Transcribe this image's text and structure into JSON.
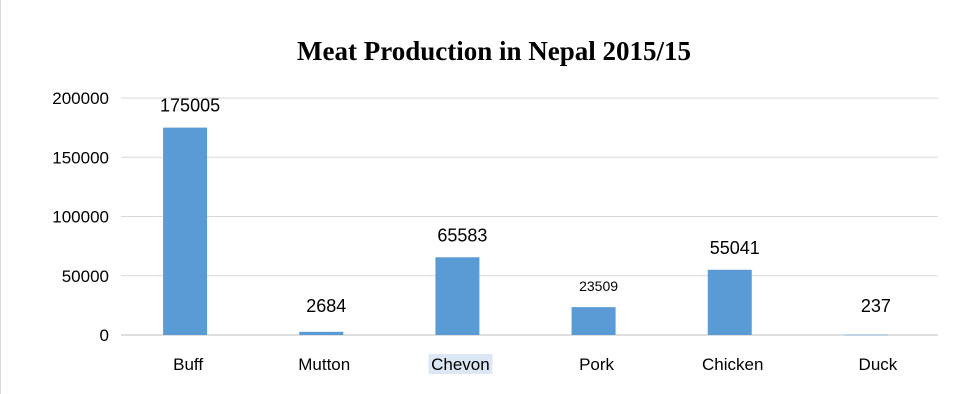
{
  "chart_data": {
    "type": "bar",
    "title": "Meat Production in Nepal 2015/15",
    "xlabel": "",
    "ylabel": "",
    "ylim": [
      0,
      200000
    ],
    "yticks": [
      0,
      50000,
      100000,
      150000,
      200000
    ],
    "grid": true,
    "legend": "none",
    "categories": [
      "Buff",
      "Mutton",
      "Chevon",
      "Pork",
      "Chicken",
      "Duck"
    ],
    "values": [
      175005,
      2684,
      65583,
      23509,
      55041,
      237
    ],
    "data_labels": [
      "175005",
      "2684",
      "65583",
      "23509",
      "55041",
      "237"
    ],
    "bar_color": "#5b9bd5"
  }
}
